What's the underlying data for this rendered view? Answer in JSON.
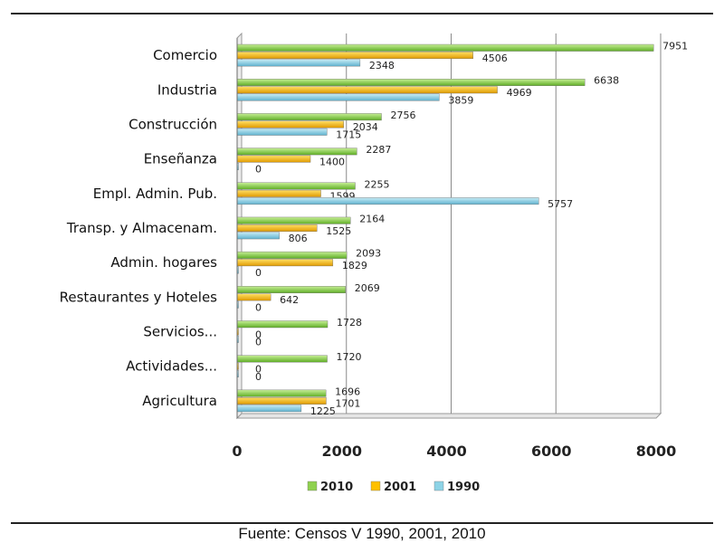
{
  "chart_data": {
    "type": "bar",
    "orientation": "horizontal",
    "categories": [
      "Comercio",
      "Industria",
      "Construcción",
      "Enseñanza",
      "Empl. Admin. Pub.",
      "Transp. y Almacenam.",
      "Admin. hogares",
      "Restaurantes y Hoteles",
      "Servicios...",
      "Actividades...",
      "Agricultura"
    ],
    "series": [
      {
        "name": "2010",
        "color": "#8fd14f",
        "values": [
          7951,
          6638,
          2756,
          2287,
          2255,
          2164,
          2093,
          2069,
          1728,
          1720,
          1696
        ]
      },
      {
        "name": "2001",
        "color": "#ffc000",
        "values": [
          4506,
          4969,
          2034,
          1400,
          1599,
          1525,
          1829,
          642,
          0,
          0,
          1701
        ]
      },
      {
        "name": "1990",
        "color": "#8dd3e6",
        "values": [
          2348,
          3859,
          1715,
          0,
          5757,
          806,
          0,
          0,
          0,
          0,
          1225
        ]
      }
    ],
    "xlim": [
      0,
      8000
    ],
    "xticks": [
      "0",
      "2000",
      "4000",
      "6000",
      "8000"
    ],
    "grid": "vertical",
    "legend": "bottom",
    "xlabel": "",
    "ylabel": "",
    "title": ""
  },
  "source": "Fuente: Censos V 1990, 2001, 2010"
}
